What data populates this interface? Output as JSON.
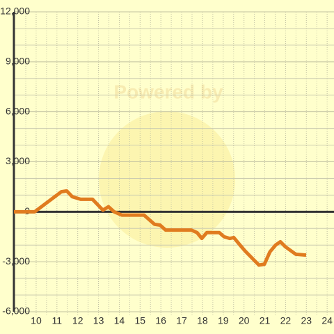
{
  "chart_data": {
    "type": "line",
    "watermark": "Powered by",
    "x": [
      8.93,
      9.93,
      11.21,
      11.47,
      11.74,
      12.14,
      12.71,
      13.21,
      13.48,
      13.75,
      14.12,
      15.19,
      15.69,
      15.96,
      16.23,
      17.47,
      17.74,
      17.97,
      18.21,
      18.81,
      19.04,
      19.31,
      19.51,
      19.81,
      20.05,
      20.72,
      20.98,
      21.25,
      21.52,
      21.75,
      21.99,
      22.49,
      22.99
    ],
    "series": [
      {
        "color": "#e07b1f",
        "values": [
          0,
          0,
          1200,
          1250,
          900,
          750,
          750,
          100,
          300,
          0,
          -200,
          -200,
          -750,
          -800,
          -1100,
          -1100,
          -1250,
          -1600,
          -1250,
          -1250,
          -1500,
          -1600,
          -1550,
          -2000,
          -2350,
          -3200,
          -3150,
          -2400,
          -2000,
          -1800,
          -2100,
          -2550,
          -2600
        ]
      }
    ],
    "xlim": [
      8.93,
      24.33
    ],
    "xticks": [
      10,
      11,
      12,
      13,
      14,
      15,
      16,
      17,
      18,
      19,
      20,
      21,
      22,
      23,
      24
    ],
    "x_minor_ticks": [
      9.5,
      10.5,
      11.5,
      12.5,
      13.5,
      14.5,
      15.5,
      16.5,
      17.5,
      18.5,
      19.5,
      20.5,
      21.5,
      22.5,
      23.5
    ],
    "ylim": [
      -6000,
      12000
    ],
    "yticks": [
      {
        "value": -6000,
        "label": "-6,000"
      },
      {
        "value": -3000,
        "label": "-3,000"
      },
      0,
      {
        "value": 3000,
        "label": "3,000"
      },
      {
        "value": 6000,
        "label": "6,000"
      },
      {
        "value": 9000,
        "label": "9,000"
      },
      {
        "value": 12000,
        "label": "12,000"
      }
    ],
    "y_minor_ticks": [
      -5000,
      -4000,
      -2000,
      -1000,
      1000,
      2000,
      4000,
      5000,
      7000,
      8000,
      10000,
      11000
    ],
    "grid": true
  }
}
